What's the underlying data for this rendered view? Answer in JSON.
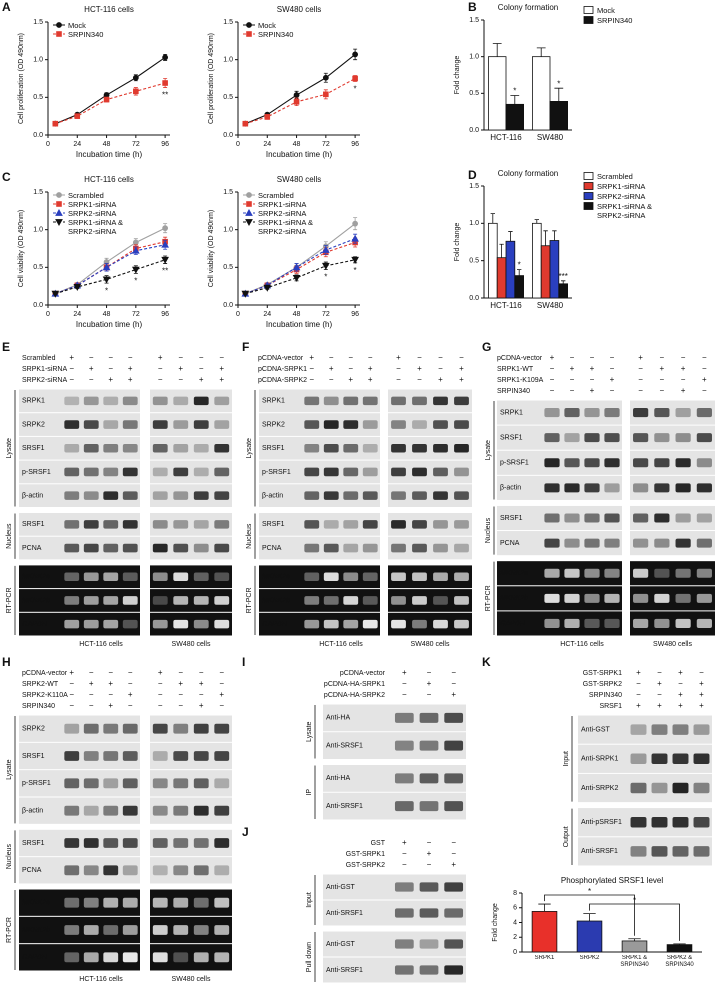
{
  "chart_data": [
    {
      "type": "line",
      "panel": "A",
      "title": "HCT-116 cells",
      "xlabel": "Incubation time (h)",
      "ylabel": "Cell proliferation (OD 490nm)",
      "legend": "upper left",
      "x": [
        6,
        24,
        48,
        72,
        96
      ],
      "xlim": [
        0,
        100
      ],
      "xticks": [
        0,
        24,
        48,
        72,
        96
      ],
      "ylim": [
        0,
        1.5
      ],
      "yticks": [
        {
          "value": 0,
          "label": "0.0"
        },
        0.5,
        {
          "value": 1,
          "label": "1.0"
        },
        1.5
      ],
      "series": [
        {
          "name": "Mock",
          "color": "#111111",
          "marker": "circle",
          "line_style": "solid",
          "values": [
            0.15,
            0.27,
            0.53,
            0.76,
            1.03
          ],
          "errors": [
            0.01,
            0.02,
            0.03,
            0.04,
            0.04
          ]
        },
        {
          "name": "SRPIN340",
          "color": "#e03a2f",
          "marker": "square",
          "line_style": "dashed",
          "values": [
            0.15,
            0.25,
            0.47,
            0.58,
            0.69
          ],
          "errors": [
            0.01,
            0.02,
            0.03,
            0.05,
            0.06
          ],
          "annotations": [
            null,
            null,
            null,
            null,
            "**"
          ]
        }
      ]
    },
    {
      "type": "line",
      "title": "SW480 cells",
      "xlabel": "Incubation time (h)",
      "ylabel": "Cell proliferation (OD 490nm)",
      "legend": "upper left",
      "x": [
        6,
        24,
        48,
        72,
        96
      ],
      "xlim": [
        0,
        100
      ],
      "xticks": [
        0,
        24,
        48,
        72,
        96
      ],
      "ylim": [
        0,
        1.5
      ],
      "yticks": [
        {
          "value": 0,
          "label": "0.0"
        },
        0.5,
        {
          "value": 1,
          "label": "1.0"
        },
        1.5
      ],
      "series": [
        {
          "name": "Mock",
          "color": "#111111",
          "marker": "circle",
          "line_style": "solid",
          "values": [
            0.15,
            0.27,
            0.53,
            0.76,
            1.07
          ],
          "errors": [
            0.01,
            0.02,
            0.05,
            0.06,
            0.07
          ]
        },
        {
          "name": "SRPIN340",
          "color": "#e03a2f",
          "marker": "square",
          "line_style": "dashed",
          "values": [
            0.15,
            0.24,
            0.44,
            0.54,
            0.75
          ],
          "errors": [
            0.01,
            0.03,
            0.05,
            0.06,
            0.04
          ],
          "annotations": [
            null,
            null,
            null,
            null,
            "*"
          ]
        }
      ]
    },
    {
      "type": "bar",
      "panel": "B",
      "title": "Colony formation",
      "ylabel": "Fold change",
      "legend": "right",
      "categories": [
        "HCT-116",
        "SW480"
      ],
      "ylim": [
        0,
        1.5
      ],
      "yticks": [
        {
          "value": 0,
          "label": "0.0"
        },
        0.5,
        {
          "value": 1,
          "label": "1.0"
        },
        1.5
      ],
      "series": [
        {
          "name": "Mock",
          "color": "#ffffff",
          "values": [
            1.0,
            1.0
          ],
          "errors": [
            0.18,
            0.12
          ]
        },
        {
          "name": "SRPIN340",
          "color": "#111111",
          "values": [
            0.35,
            0.39
          ],
          "errors": [
            0.12,
            0.18
          ],
          "annotations": [
            "*",
            "*"
          ]
        }
      ]
    },
    {
      "type": "line",
      "panel": "C",
      "title": "HCT-116 cells",
      "xlabel": "Incubation time (h)",
      "ylabel": "Cell viability (OD 490nm)",
      "legend": "upper left",
      "x": [
        6,
        24,
        48,
        72,
        96
      ],
      "xlim": [
        0,
        100
      ],
      "xticks": [
        0,
        24,
        48,
        72,
        96
      ],
      "ylim": [
        0,
        1.5
      ],
      "yticks": [
        {
          "value": 0,
          "label": "0.0"
        },
        0.5,
        {
          "value": 1,
          "label": "1.0"
        },
        1.5
      ],
      "series": [
        {
          "name": "Scrambled",
          "color": "#a0a0a0",
          "marker": "circle",
          "line_style": "solid",
          "values": [
            0.15,
            0.27,
            0.57,
            0.83,
            1.02
          ],
          "errors": [
            0.01,
            0.02,
            0.05,
            0.05,
            0.06
          ]
        },
        {
          "name": "SRPK1-siRNA",
          "color": "#e03a2f",
          "marker": "square",
          "line_style": "dashed",
          "values": [
            0.15,
            0.26,
            0.5,
            0.75,
            0.84
          ],
          "errors": [
            0.01,
            0.02,
            0.05,
            0.05,
            0.06
          ]
        },
        {
          "name": "SRPK2-siRNA",
          "color": "#2a3fbf",
          "marker": "triangle",
          "line_style": "dashed",
          "values": [
            0.15,
            0.26,
            0.5,
            0.72,
            0.8
          ],
          "errors": [
            0.01,
            0.02,
            0.05,
            0.05,
            0.06
          ]
        },
        {
          "name": "SRPK1-siRNA & SRPK2-siRNA",
          "color": "#111111",
          "marker": "triangle-down",
          "line_style": "dashed",
          "values": [
            0.15,
            0.24,
            0.34,
            0.47,
            0.6
          ],
          "errors": [
            0.01,
            0.02,
            0.05,
            0.05,
            0.05
          ],
          "annotations": [
            null,
            null,
            "*",
            "*",
            "**"
          ]
        }
      ]
    },
    {
      "type": "line",
      "title": "SW480 cells",
      "xlabel": "Incubation time (h)",
      "ylabel": "Cell viability (OD 490nm)",
      "legend": "upper left",
      "x": [
        6,
        24,
        48,
        72,
        96
      ],
      "xlim": [
        0,
        100
      ],
      "xticks": [
        0,
        24,
        48,
        72,
        96
      ],
      "ylim": [
        0,
        1.5
      ],
      "yticks": [
        {
          "value": 0,
          "label": "0.0"
        },
        0.5,
        {
          "value": 1,
          "label": "1.0"
        },
        1.5
      ],
      "series": [
        {
          "name": "Scrambled",
          "color": "#a0a0a0",
          "marker": "circle",
          "line_style": "solid",
          "values": [
            0.15,
            0.27,
            0.5,
            0.78,
            1.08
          ],
          "errors": [
            0.01,
            0.02,
            0.05,
            0.06,
            0.08
          ]
        },
        {
          "name": "SRPK1-siRNA",
          "color": "#e03a2f",
          "marker": "square",
          "line_style": "dashed",
          "values": [
            0.15,
            0.26,
            0.47,
            0.7,
            0.83
          ],
          "errors": [
            0.01,
            0.02,
            0.05,
            0.06,
            0.06
          ]
        },
        {
          "name": "SRPK2-siRNA",
          "color": "#2a3fbf",
          "marker": "triangle",
          "line_style": "dashed",
          "values": [
            0.15,
            0.26,
            0.5,
            0.73,
            0.88
          ],
          "errors": [
            0.01,
            0.02,
            0.05,
            0.06,
            0.06
          ]
        },
        {
          "name": "SRPK1-siRNA & SRPK2-siRNA",
          "color": "#111111",
          "marker": "triangle-down",
          "line_style": "dashed",
          "values": [
            0.15,
            0.23,
            0.36,
            0.52,
            0.6
          ],
          "errors": [
            0.01,
            0.02,
            0.04,
            0.05,
            0.04
          ],
          "annotations": [
            null,
            null,
            null,
            "*",
            "*"
          ]
        }
      ]
    },
    {
      "type": "bar",
      "panel": "D",
      "title": "Colony formation",
      "ylabel": "Fold change",
      "legend": "right",
      "categories": [
        "HCT-116",
        "SW480"
      ],
      "ylim": [
        0,
        1.5
      ],
      "yticks": [
        {
          "value": 0,
          "label": "0.0"
        },
        0.5,
        {
          "value": 1,
          "label": "1.0"
        },
        1.5
      ],
      "series": [
        {
          "name": "Scrambled",
          "color": "#ffffff",
          "values": [
            1.0,
            1.0
          ],
          "errors": [
            0.13,
            0.05
          ]
        },
        {
          "name": "SRPK1-siRNA",
          "color": "#e03a2f",
          "values": [
            0.54,
            0.7
          ],
          "errors": [
            0.18,
            0.2
          ]
        },
        {
          "name": "SRPK2-siRNA",
          "color": "#2a3fbf",
          "values": [
            0.76,
            0.77
          ],
          "errors": [
            0.13,
            0.13
          ]
        },
        {
          "name": "SRPK1-siRNA & SRPK2-siRNA",
          "color": "#111111",
          "values": [
            0.3,
            0.19
          ],
          "errors": [
            0.08,
            0.04
          ],
          "annotations": [
            "*",
            "***"
          ]
        }
      ]
    },
    {
      "type": "bar",
      "title": "Phosphorylated SRSF1 level",
      "ylabel": "Fold change",
      "categories": [
        "SRPK1",
        "SRPK2",
        "SRPK1 & SRPIN340",
        "SRPK2 & SRPIN340"
      ],
      "values": [
        5.5,
        4.2,
        1.5,
        1.0
      ],
      "errors": [
        1.0,
        1.0,
        0.3,
        0.1
      ],
      "colors": [
        "#e8302a",
        "#2b3bb0",
        "#9a9a9a",
        "#111111"
      ],
      "ylim": [
        0,
        8
      ],
      "yticks": [
        0,
        2,
        4,
        6,
        8
      ],
      "comparisons": [
        {
          "from": "SRPK1",
          "to": "SRPK1 & SRPIN340",
          "text": "*"
        },
        {
          "from": "SRPK2",
          "to": "SRPK2 & SRPIN340",
          "text": "*"
        }
      ]
    }
  ],
  "blots": [
    {
      "panel": "E",
      "treatments": [
        {
          "label": "Scrambled",
          "signs": [
            "+",
            "−",
            "−",
            "−",
            "+",
            "−",
            "−",
            "−"
          ]
        },
        {
          "label": "SRPK1-siRNA",
          "signs": [
            "−",
            "+",
            "−",
            "+",
            "−",
            "+",
            "−",
            "+"
          ]
        },
        {
          "label": "SRPK2-siRNA",
          "signs": [
            "−",
            "−",
            "+",
            "+",
            "−",
            "−",
            "+",
            "+"
          ]
        }
      ],
      "groups": [
        {
          "label": "Lysate",
          "rows": [
            "SRPK1",
            "SRPK2",
            "SRSF1",
            "p-SRSF1",
            "β-actin"
          ]
        },
        {
          "label": "Nucleus",
          "rows": [
            "SRSF1",
            "PCNA"
          ]
        },
        {
          "label": "RT-PCR",
          "rows": [
            "MKNK2a",
            "MKNK2b",
            "GAPDH"
          ],
          "background": "#111111",
          "text_color": "#ffffff",
          "font_style": "italic"
        }
      ],
      "cells": [
        "HCT-116 cells",
        "SW480 cells"
      ]
    },
    {
      "panel": "F",
      "treatments": [
        {
          "label": "pCDNA-vector",
          "signs": [
            "+",
            "−",
            "−",
            "−",
            "+",
            "−",
            "−",
            "−"
          ]
        },
        {
          "label": "pCDNA-SRPK1",
          "signs": [
            "−",
            "+",
            "−",
            "+",
            "−",
            "+",
            "−",
            "+"
          ]
        },
        {
          "label": "pCDNA-SRPK2",
          "signs": [
            "−",
            "−",
            "+",
            "+",
            "−",
            "−",
            "+",
            "+"
          ]
        }
      ],
      "groups": [
        {
          "label": "Lysate",
          "rows": [
            "SRPK1",
            "SRPK2",
            "SRSF1",
            "p-SRSF1",
            "β-actin"
          ]
        },
        {
          "label": "Nucleus",
          "rows": [
            "SRSF1",
            "PCNA"
          ]
        },
        {
          "label": "RT-PCR",
          "rows": [
            "MKNK2a",
            "MKNK2b",
            "GAPDH"
          ],
          "background": "#111111",
          "text_color": "#ffffff",
          "font_style": "italic"
        }
      ],
      "cells": [
        "HCT-116 cells",
        "SW480 cells"
      ]
    },
    {
      "panel": "G",
      "treatments": [
        {
          "label": "pCDNA-vector",
          "signs": [
            "+",
            "−",
            "−",
            "−",
            "+",
            "−",
            "−",
            "−"
          ]
        },
        {
          "label": "SRPK1-WT",
          "signs": [
            "−",
            "+",
            "+",
            "−",
            "−",
            "+",
            "+",
            "−"
          ]
        },
        {
          "label": "SRPK1-K109A",
          "signs": [
            "−",
            "−",
            "−",
            "+",
            "−",
            "−",
            "−",
            "+"
          ]
        },
        {
          "label": "SRPIN340",
          "signs": [
            "−",
            "−",
            "+",
            "−",
            "−",
            "−",
            "+",
            "−"
          ]
        }
      ],
      "groups": [
        {
          "label": "Lysate",
          "rows": [
            "SRPK1",
            "SRSF1",
            "p-SRSF1",
            "β-actin"
          ]
        },
        {
          "label": "Nucleus",
          "rows": [
            "SRSF1",
            "PCNA"
          ]
        },
        {
          "label": "RT-PCR",
          "rows": [
            "MKNK2a",
            "MKNK2b",
            "GAPDH"
          ],
          "background": "#111111",
          "text_color": "#ffffff",
          "font_style": "italic"
        }
      ],
      "cells": [
        "HCT-116 cells",
        "SW480 cells"
      ]
    },
    {
      "panel": "H",
      "treatments": [
        {
          "label": "pCDNA-vector",
          "signs": [
            "+",
            "−",
            "−",
            "−",
            "+",
            "−",
            "−",
            "−"
          ]
        },
        {
          "label": "SRPK2-WT",
          "signs": [
            "−",
            "+",
            "+",
            "−",
            "−",
            "+",
            "+",
            "−"
          ]
        },
        {
          "label": "SRPK2-K110A",
          "signs": [
            "−",
            "−",
            "−",
            "+",
            "−",
            "−",
            "−",
            "+"
          ]
        },
        {
          "label": "SRPIN340",
          "signs": [
            "−",
            "−",
            "+",
            "−",
            "−",
            "−",
            "+",
            "−"
          ]
        }
      ],
      "groups": [
        {
          "label": "Lysate",
          "rows": [
            "SRPK2",
            "SRSF1",
            "p-SRSF1",
            "β-actin"
          ]
        },
        {
          "label": "Nucleus",
          "rows": [
            "SRSF1",
            "PCNA"
          ]
        },
        {
          "label": "RT-PCR",
          "rows": [
            "MKNK2a",
            "MKNK2b",
            "GAPDH"
          ],
          "background": "#111111",
          "text_color": "#ffffff",
          "font_style": "italic"
        }
      ],
      "cells": [
        "HCT-116 cells",
        "SW480 cells"
      ]
    },
    {
      "panel": "I",
      "treatments": [
        {
          "label": "pCDNA-vector",
          "signs": [
            "+",
            "−",
            "−"
          ]
        },
        {
          "label": "pCDNA-HA-SRPK1",
          "signs": [
            "−",
            "+",
            "−"
          ]
        },
        {
          "label": "pCDNA-HA-SRPK2",
          "signs": [
            "−",
            "−",
            "+"
          ]
        }
      ],
      "groups": [
        {
          "label": "Lysate",
          "rows": [
            "Anti-HA",
            "Anti-SRSF1"
          ]
        },
        {
          "label": "IP",
          "rows": [
            "Anti-HA",
            "Anti-SRSF1"
          ]
        }
      ]
    },
    {
      "panel": "J",
      "treatments": [
        {
          "label": "GST",
          "signs": [
            "+",
            "−",
            "−"
          ]
        },
        {
          "label": "GST-SRPK1",
          "signs": [
            "−",
            "+",
            "−"
          ]
        },
        {
          "label": "GST-SRPK2",
          "signs": [
            "−",
            "−",
            "+"
          ]
        }
      ],
      "groups": [
        {
          "label": "Input",
          "rows": [
            "Anti-GST",
            "Anti-SRSF1"
          ]
        },
        {
          "label": "Pull down",
          "rows": [
            "Anti-GST",
            "Anti-SRSF1"
          ]
        }
      ]
    },
    {
      "panel": "K",
      "treatments": [
        {
          "label": "GST-SRPK1",
          "signs": [
            "+",
            "−",
            "+",
            "−"
          ]
        },
        {
          "label": "GST-SRPK2",
          "signs": [
            "−",
            "+",
            "−",
            "+"
          ]
        },
        {
          "label": "SRPIN340",
          "signs": [
            "−",
            "−",
            "+",
            "+"
          ]
        },
        {
          "label": "SRSF1",
          "signs": [
            "+",
            "+",
            "+",
            "+"
          ]
        }
      ],
      "groups": [
        {
          "label": "Input",
          "rows": [
            "Anti-GST",
            "Anti-SRPK1",
            "Anti-SRPK2"
          ]
        },
        {
          "label": "Output",
          "rows": [
            "Anti-pSRSF1",
            "Anti-SRSF1"
          ]
        }
      ]
    }
  ]
}
